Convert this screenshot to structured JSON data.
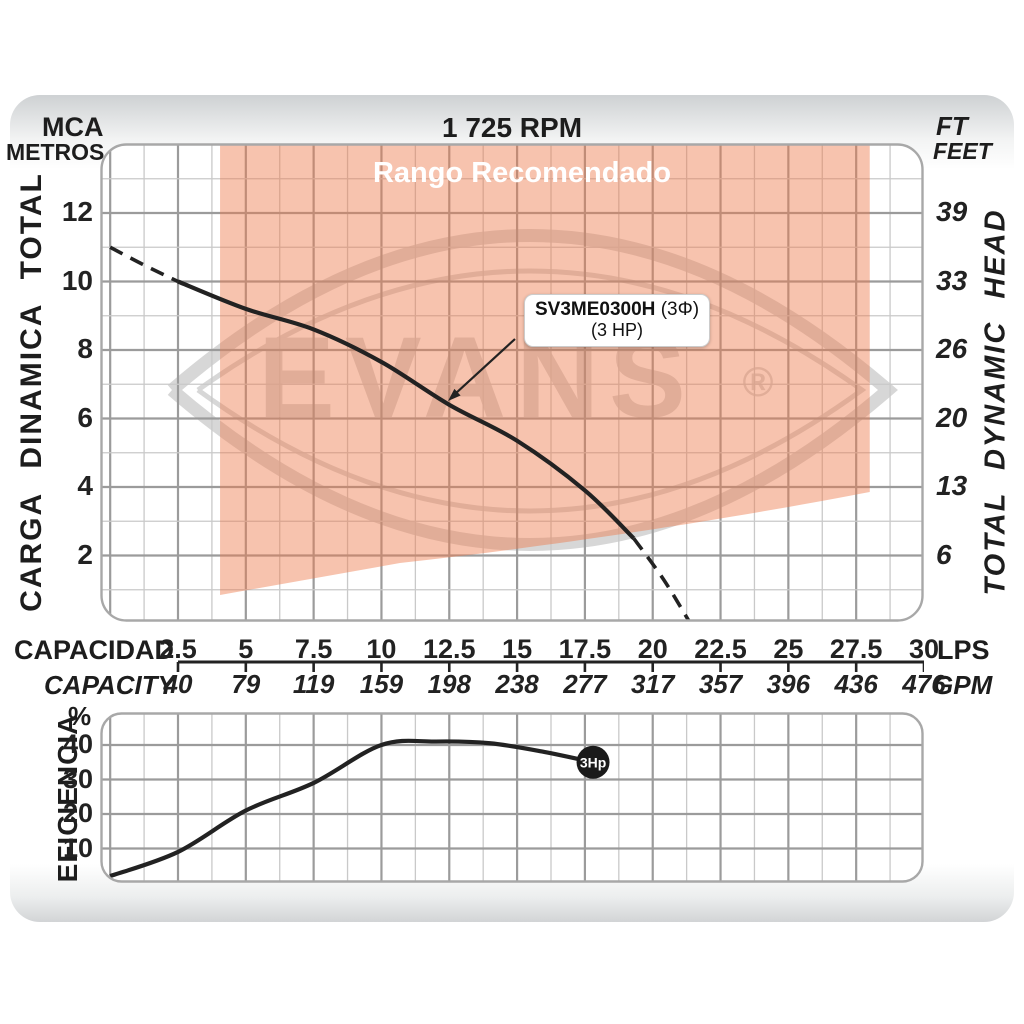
{
  "header": {
    "left_unit_line1": "MCA",
    "left_unit_line2": "METROS",
    "title": "1 725 RPM",
    "right_unit_line1": "FT",
    "right_unit_line2": "FEET"
  },
  "axes": {
    "left_axis_label": "CARGA DINAMICA TOTAL",
    "right_axis_label": "TOTAL DYNAMIC HEAD",
    "left_ticks_mca": [
      12,
      10,
      8,
      6,
      4,
      2
    ],
    "right_ticks_ft": [
      39,
      33,
      26,
      20,
      13,
      6
    ],
    "x_label_primary": "CAPACIDAD",
    "x_label_secondary": "CAPACITY",
    "x_unit_primary": "LPS",
    "x_unit_secondary": "GPM",
    "lps_ticks": [
      2.5,
      5,
      7.5,
      10,
      12.5,
      15,
      17.5,
      20,
      22.5,
      25,
      27.5,
      30
    ],
    "gpm_ticks": [
      40,
      79,
      119,
      159,
      198,
      238,
      277,
      317,
      357,
      396,
      436,
      476
    ]
  },
  "region": {
    "label": "Rango Recomendado"
  },
  "curve_label": {
    "model": "SV3ME0300H",
    "phase": "(3Φ)",
    "power": "(3 HP)"
  },
  "watermark": {
    "text": "EVANS",
    "registered": "®"
  },
  "efficiency": {
    "axis_label": "EFICIENCIA",
    "unit": "%",
    "ticks": [
      40,
      30,
      20,
      10
    ],
    "marker_label": "3Hp"
  },
  "colors": {
    "recommended_fill": "#ee7a4b",
    "watermark_gray": "#d7d7d7",
    "curve_black": "#222222",
    "grid_minor": "#c9c9c9",
    "grid_major": "#9b9b9b",
    "grid_border": "#a8a8a8",
    "region_text": "#ffffff"
  },
  "chart_data": [
    {
      "type": "line",
      "title": "1 725 RPM",
      "xlabel": "CAPACIDAD (LPS) / CAPACITY (GPM)",
      "ylabel": "CARGA DINAMICA TOTAL (MCA METROS) / TOTAL DYNAMIC HEAD (FT FEET)",
      "xlim_lps": [
        0,
        30
      ],
      "ylim_mca": [
        0,
        14
      ],
      "grid": true,
      "x_tick_pairs_lps_gpm": [
        [
          2.5,
          40
        ],
        [
          5,
          79
        ],
        [
          7.5,
          119
        ],
        [
          10,
          159
        ],
        [
          12.5,
          198
        ],
        [
          15,
          238
        ],
        [
          17.5,
          277
        ],
        [
          20,
          317
        ],
        [
          22.5,
          357
        ],
        [
          25,
          396
        ],
        [
          27.5,
          436
        ],
        [
          30,
          476
        ]
      ],
      "left_right_tick_pairs_mca_ft": [
        [
          12,
          39
        ],
        [
          10,
          33
        ],
        [
          8,
          26
        ],
        [
          6,
          20
        ],
        [
          4,
          13
        ],
        [
          2,
          6
        ]
      ],
      "series": [
        {
          "name": "SV3ME0300H (3Φ) (3 HP) head curve",
          "style": "solid",
          "x_lps": [
            2.5,
            5,
            7.5,
            10,
            12.5,
            15,
            17.5,
            19.3
          ],
          "y_mca": [
            10,
            9.2,
            8.6,
            7.65,
            6.4,
            5.35,
            3.9,
            2.5
          ]
        },
        {
          "name": "extrapolation low flow",
          "style": "dashed",
          "x_lps": [
            0,
            1.2,
            2.5
          ],
          "y_mca": [
            11,
            10.5,
            10
          ]
        },
        {
          "name": "extrapolation high flow",
          "style": "dashed",
          "x_lps": [
            19.3,
            20.4,
            21.4
          ],
          "y_mca": [
            2.5,
            1.3,
            0
          ]
        }
      ],
      "recommended_range": {
        "label": "Rango Recomendado",
        "x_lps": [
          4.05,
          28.0
        ]
      }
    },
    {
      "type": "line",
      "title": "EFICIENCIA",
      "ylabel": "%",
      "ylim": [
        0,
        50
      ],
      "x_lps": [
        0,
        2.5,
        5,
        7.5,
        10,
        12,
        14,
        16,
        17.8
      ],
      "values_pct": [
        2,
        9,
        21,
        29,
        40,
        41,
        40.5,
        38,
        35
      ],
      "endpoint_marker": "3Hp"
    }
  ]
}
